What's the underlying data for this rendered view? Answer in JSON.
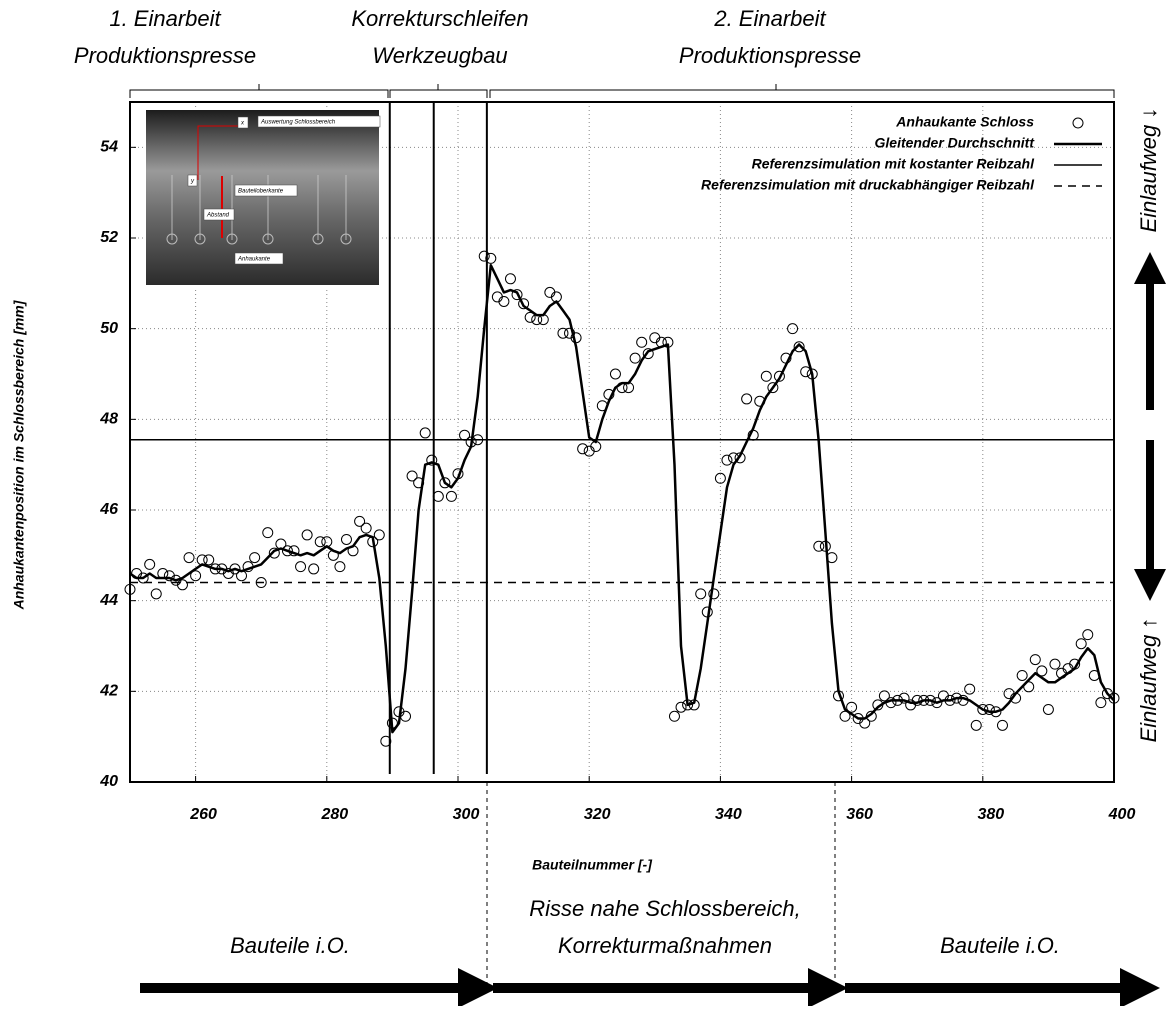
{
  "chart_data": {
    "type": "line",
    "xlabel": "Bauteilnummer [-]",
    "ylabel": "Anhaukantenposition im Schlossbereich [mm]",
    "xlim": [
      250,
      400
    ],
    "ylim": [
      40,
      55
    ],
    "xticks": [
      260,
      280,
      300,
      320,
      340,
      360,
      380,
      400
    ],
    "yticks": [
      40,
      42,
      44,
      46,
      48,
      50,
      52,
      54
    ],
    "grid": true,
    "legend": "upper right",
    "x": [
      250,
      251,
      252,
      253,
      254,
      255,
      256,
      257,
      258,
      259,
      260,
      261,
      262,
      263,
      264,
      265,
      266,
      267,
      268,
      269,
      270,
      271,
      272,
      273,
      274,
      275,
      276,
      277,
      278,
      279,
      280,
      281,
      282,
      283,
      284,
      285,
      286,
      287,
      288,
      289,
      290,
      291,
      292,
      293,
      294,
      295,
      296,
      297,
      298,
      299,
      300,
      301,
      302,
      303,
      304,
      305,
      306,
      307,
      308,
      309,
      310,
      311,
      312,
      313,
      314,
      315,
      316,
      317,
      318,
      319,
      320,
      321,
      322,
      323,
      324,
      325,
      326,
      327,
      328,
      329,
      330,
      331,
      332,
      333,
      334,
      335,
      336,
      337,
      338,
      339,
      340,
      341,
      342,
      343,
      344,
      345,
      346,
      347,
      348,
      349,
      350,
      351,
      352,
      353,
      354,
      355,
      356,
      357,
      358,
      359,
      360,
      361,
      362,
      363,
      364,
      365,
      366,
      367,
      368,
      369,
      370,
      371,
      372,
      373,
      374,
      375,
      376,
      377,
      378,
      379,
      380,
      381,
      382,
      383,
      384,
      385,
      386,
      387,
      388,
      389,
      390,
      391,
      392,
      393,
      394,
      395,
      396,
      397,
      398,
      399,
      400
    ],
    "series": [
      {
        "name": "Anhaukante Schloss",
        "style": "markers",
        "color": "#000000",
        "values": [
          44.25,
          44.6,
          44.5,
          44.8,
          44.15,
          44.6,
          44.55,
          44.45,
          44.35,
          44.95,
          44.55,
          44.9,
          44.9,
          44.7,
          44.7,
          44.6,
          44.7,
          44.55,
          44.75,
          44.95,
          44.4,
          45.5,
          45.05,
          45.25,
          45.1,
          45.1,
          44.75,
          45.45,
          44.7,
          45.3,
          45.3,
          45.0,
          44.75,
          45.35,
          45.1,
          45.75,
          45.6,
          45.3,
          45.45,
          40.9,
          41.3,
          41.55,
          41.45,
          46.75,
          46.6,
          47.7,
          47.1,
          46.3,
          46.6,
          46.3,
          46.8,
          47.65,
          47.5,
          47.55,
          51.6,
          51.55,
          50.7,
          50.6,
          51.1,
          50.75,
          50.55,
          50.25,
          50.2,
          50.2,
          50.8,
          50.7,
          49.9,
          49.9,
          49.8,
          47.35,
          47.3,
          47.4,
          48.3,
          48.55,
          49.0,
          48.7,
          48.7,
          49.35,
          49.7,
          49.45,
          49.8,
          49.7,
          49.7,
          41.45,
          41.65,
          41.7,
          41.7,
          44.15,
          43.75,
          44.15,
          46.7,
          47.1,
          47.15,
          47.15,
          48.45,
          47.65,
          48.4,
          48.95,
          48.7,
          48.95,
          49.35,
          50.0,
          49.6,
          49.05,
          49.0,
          45.2,
          45.2,
          44.95,
          41.9,
          41.45,
          41.65,
          41.4,
          41.3,
          41.45,
          41.7,
          41.9,
          41.75,
          41.8,
          41.85,
          41.7,
          41.8,
          41.8,
          41.8,
          41.75,
          41.9,
          41.8,
          41.85,
          41.8,
          42.05,
          41.25,
          41.6,
          41.6,
          41.55,
          41.25,
          41.95,
          41.85,
          42.35,
          42.1,
          42.7,
          42.45,
          41.6,
          42.6,
          42.4,
          42.5,
          42.6,
          43.05,
          43.25,
          42.35,
          41.75,
          41.95,
          41.85
        ]
      },
      {
        "name": "Gleitender Durchschnitt",
        "style": "line",
        "color": "#000000",
        "width": 2.5,
        "values": [
          44.6,
          44.5,
          44.5,
          44.6,
          44.5,
          44.5,
          44.5,
          44.45,
          44.5,
          44.6,
          44.7,
          44.8,
          44.75,
          44.7,
          44.7,
          44.65,
          44.7,
          44.65,
          44.7,
          44.75,
          44.8,
          44.95,
          45.1,
          45.15,
          45.1,
          45.05,
          45.0,
          45.05,
          45.0,
          45.1,
          45.2,
          45.1,
          45.05,
          45.15,
          45.2,
          45.4,
          45.45,
          45.4,
          44.5,
          43.0,
          41.1,
          41.3,
          42.5,
          44.2,
          46.0,
          47.0,
          47.05,
          47.0,
          46.6,
          46.5,
          46.7,
          47.1,
          47.4,
          48.5,
          50.0,
          51.4,
          51.1,
          50.8,
          50.85,
          50.8,
          50.5,
          50.4,
          50.3,
          50.3,
          50.5,
          50.6,
          50.4,
          50.2,
          49.6,
          48.6,
          47.6,
          47.5,
          48.0,
          48.4,
          48.7,
          48.8,
          48.8,
          49.0,
          49.3,
          49.5,
          49.55,
          49.6,
          49.65,
          47.0,
          43.0,
          41.7,
          41.75,
          42.5,
          43.5,
          44.5,
          45.5,
          46.5,
          47.0,
          47.2,
          47.5,
          47.8,
          48.2,
          48.5,
          48.7,
          48.9,
          49.2,
          49.5,
          49.65,
          49.5,
          49.0,
          47.5,
          45.5,
          43.5,
          42.0,
          41.6,
          41.5,
          41.4,
          41.4,
          41.5,
          41.65,
          41.75,
          41.8,
          41.8,
          41.8,
          41.75,
          41.75,
          41.8,
          41.8,
          41.75,
          41.8,
          41.8,
          41.85,
          41.85,
          41.8,
          41.7,
          41.6,
          41.55,
          41.55,
          41.6,
          41.75,
          41.95,
          42.1,
          42.25,
          42.4,
          42.3,
          42.2,
          42.2,
          42.3,
          42.4,
          42.5,
          42.75,
          42.95,
          42.8,
          42.2,
          41.95,
          41.8
        ]
      },
      {
        "name": "Referenzsimulation mit kostanter Reibzahl",
        "style": "hline",
        "color": "#000000",
        "width": 1.5,
        "value": 47.55
      },
      {
        "name": "Referenzsimulation mit druckabhängiger Reibzahl",
        "style": "hline",
        "dash": true,
        "color": "#000000",
        "width": 1.5,
        "value": 44.4
      }
    ],
    "vlines": [
      289.6,
      296.3,
      304.4
    ],
    "phases_top": [
      [
        "1. Einarbeit",
        "Produktionspresse"
      ],
      [
        "Korrekturschleifen",
        "Werkzeugbau"
      ],
      [
        "2. Einarbeit",
        "Produktionspresse"
      ]
    ],
    "phases_bottom": [
      [
        "Bauteile i.O."
      ],
      [
        "Risse nahe Schlossbereich,",
        "Korrekturmaßnahmen"
      ],
      [
        "Bauteile i.O."
      ]
    ],
    "side_labels": [
      "Einlaufweg ↓",
      "Einlaufweg ↑"
    ],
    "inset": {
      "title": "Auswertung Schlossbereich",
      "top": "Bauteiloberkante",
      "gap": "Abstand",
      "edge": "Anhaukante",
      "x": "x",
      "y": "y"
    }
  }
}
